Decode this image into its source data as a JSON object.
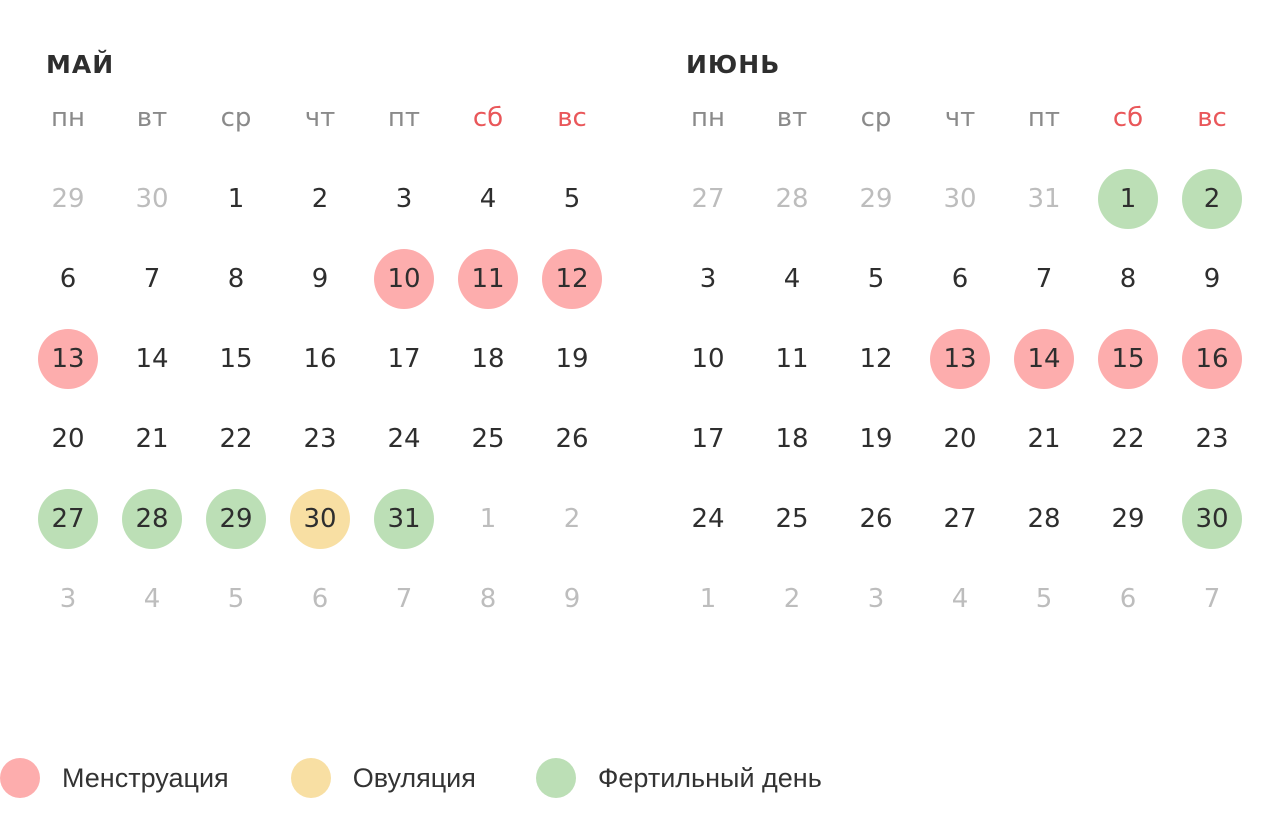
{
  "colors": {
    "menstruation": "#fdadad",
    "ovulation": "#f8dfa3",
    "fertile": "#bcdfb6",
    "weekend_label": "#e9575a",
    "weekday_label": "#8a8a8a",
    "day_text": "#2e2e2e",
    "other_month_text": "#bdbdbd"
  },
  "weekdays": [
    "пн",
    "вт",
    "ср",
    "чт",
    "пт",
    "сб",
    "вс"
  ],
  "months": [
    {
      "title": "май",
      "weeks": [
        [
          {
            "d": "29",
            "o": true
          },
          {
            "d": "30",
            "o": true
          },
          {
            "d": "1"
          },
          {
            "d": "2"
          },
          {
            "d": "3"
          },
          {
            "d": "4"
          },
          {
            "d": "5"
          }
        ],
        [
          {
            "d": "6"
          },
          {
            "d": "7"
          },
          {
            "d": "8"
          },
          {
            "d": "9"
          },
          {
            "d": "10",
            "t": "menstruation"
          },
          {
            "d": "11",
            "t": "menstruation"
          },
          {
            "d": "12",
            "t": "menstruation"
          }
        ],
        [
          {
            "d": "13",
            "t": "menstruation"
          },
          {
            "d": "14"
          },
          {
            "d": "15"
          },
          {
            "d": "16"
          },
          {
            "d": "17"
          },
          {
            "d": "18"
          },
          {
            "d": "19"
          }
        ],
        [
          {
            "d": "20"
          },
          {
            "d": "21"
          },
          {
            "d": "22"
          },
          {
            "d": "23"
          },
          {
            "d": "24"
          },
          {
            "d": "25"
          },
          {
            "d": "26"
          }
        ],
        [
          {
            "d": "27",
            "t": "fertile"
          },
          {
            "d": "28",
            "t": "fertile"
          },
          {
            "d": "29",
            "t": "fertile"
          },
          {
            "d": "30",
            "t": "ovulation"
          },
          {
            "d": "31",
            "t": "fertile"
          },
          {
            "d": "1",
            "o": true
          },
          {
            "d": "2",
            "o": true
          }
        ],
        [
          {
            "d": "3",
            "o": true
          },
          {
            "d": "4",
            "o": true
          },
          {
            "d": "5",
            "o": true
          },
          {
            "d": "6",
            "o": true
          },
          {
            "d": "7",
            "o": true
          },
          {
            "d": "8",
            "o": true
          },
          {
            "d": "9",
            "o": true
          }
        ]
      ]
    },
    {
      "title": "июнь",
      "weeks": [
        [
          {
            "d": "27",
            "o": true
          },
          {
            "d": "28",
            "o": true
          },
          {
            "d": "29",
            "o": true
          },
          {
            "d": "30",
            "o": true
          },
          {
            "d": "31",
            "o": true
          },
          {
            "d": "1",
            "t": "fertile"
          },
          {
            "d": "2",
            "t": "fertile"
          }
        ],
        [
          {
            "d": "3"
          },
          {
            "d": "4"
          },
          {
            "d": "5"
          },
          {
            "d": "6"
          },
          {
            "d": "7"
          },
          {
            "d": "8"
          },
          {
            "d": "9"
          }
        ],
        [
          {
            "d": "10"
          },
          {
            "d": "11"
          },
          {
            "d": "12"
          },
          {
            "d": "13",
            "t": "menstruation"
          },
          {
            "d": "14",
            "t": "menstruation"
          },
          {
            "d": "15",
            "t": "menstruation"
          },
          {
            "d": "16",
            "t": "menstruation"
          }
        ],
        [
          {
            "d": "17"
          },
          {
            "d": "18"
          },
          {
            "d": "19"
          },
          {
            "d": "20"
          },
          {
            "d": "21"
          },
          {
            "d": "22"
          },
          {
            "d": "23"
          }
        ],
        [
          {
            "d": "24"
          },
          {
            "d": "25"
          },
          {
            "d": "26"
          },
          {
            "d": "27"
          },
          {
            "d": "28"
          },
          {
            "d": "29"
          },
          {
            "d": "30",
            "t": "fertile"
          }
        ],
        [
          {
            "d": "1",
            "o": true
          },
          {
            "d": "2",
            "o": true
          },
          {
            "d": "3",
            "o": true
          },
          {
            "d": "4",
            "o": true
          },
          {
            "d": "5",
            "o": true
          },
          {
            "d": "6",
            "o": true
          },
          {
            "d": "7",
            "o": true
          }
        ]
      ]
    }
  ],
  "legend": [
    {
      "type": "menstruation",
      "label": "Менструация"
    },
    {
      "type": "ovulation",
      "label": "Овуляция"
    },
    {
      "type": "fertile",
      "label": "Фертильный день"
    }
  ]
}
